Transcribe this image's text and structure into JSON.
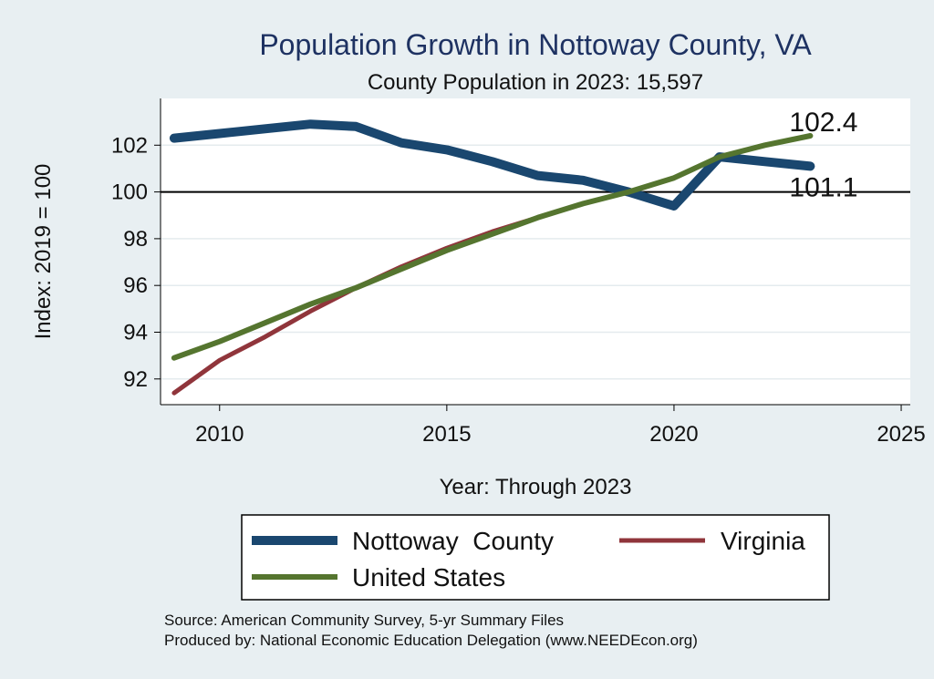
{
  "chart_data": {
    "type": "line",
    "title": "Population Growth in Nottoway County, VA",
    "subtitle": "County Population in 2023: 15,597",
    "xlabel": "Year: Through 2023",
    "ylabel": "Index: 2019 = 100",
    "xlim": [
      2008.7,
      2025.2
    ],
    "ylim": [
      90.9,
      104.0
    ],
    "xticks": [
      2010,
      2015,
      2020,
      2025
    ],
    "yticks": [
      92,
      94,
      96,
      98,
      100,
      102
    ],
    "reference_line": 100,
    "grid": true,
    "legend_position": "bottom",
    "x": [
      2009,
      2010,
      2011,
      2012,
      2013,
      2014,
      2015,
      2016,
      2017,
      2018,
      2019,
      2020,
      2021,
      2022,
      2023
    ],
    "series": [
      {
        "name": "Nottoway  County",
        "color": "#1a476f",
        "width": 10,
        "values": [
          102.3,
          102.5,
          102.7,
          102.9,
          102.8,
          102.1,
          101.8,
          101.3,
          100.7,
          100.5,
          100.0,
          99.4,
          101.5,
          101.3,
          101.1
        ]
      },
      {
        "name": "Virginia",
        "color": "#90353b",
        "width": 5,
        "values": [
          91.4,
          92.8,
          93.8,
          94.9,
          95.9,
          96.8,
          97.6,
          98.3,
          98.9,
          99.5,
          100.0,
          100.6,
          101.5,
          102.0,
          102.4
        ]
      },
      {
        "name": "United States",
        "color": "#55752f",
        "width": 6,
        "values": [
          92.9,
          93.6,
          94.4,
          95.2,
          95.9,
          96.7,
          97.5,
          98.2,
          98.9,
          99.5,
          100.0,
          100.6,
          101.5,
          102.0,
          102.4
        ]
      }
    ],
    "end_labels": [
      {
        "text": "102.4",
        "value": 102.4
      },
      {
        "text": "101.1",
        "value": 101.1
      }
    ]
  },
  "notes": {
    "source": "Source: American Community Survey, 5-yr Summary Files",
    "producer": "Produced by: National Economic Education Delegation (www.NEEDEcon.org)"
  }
}
